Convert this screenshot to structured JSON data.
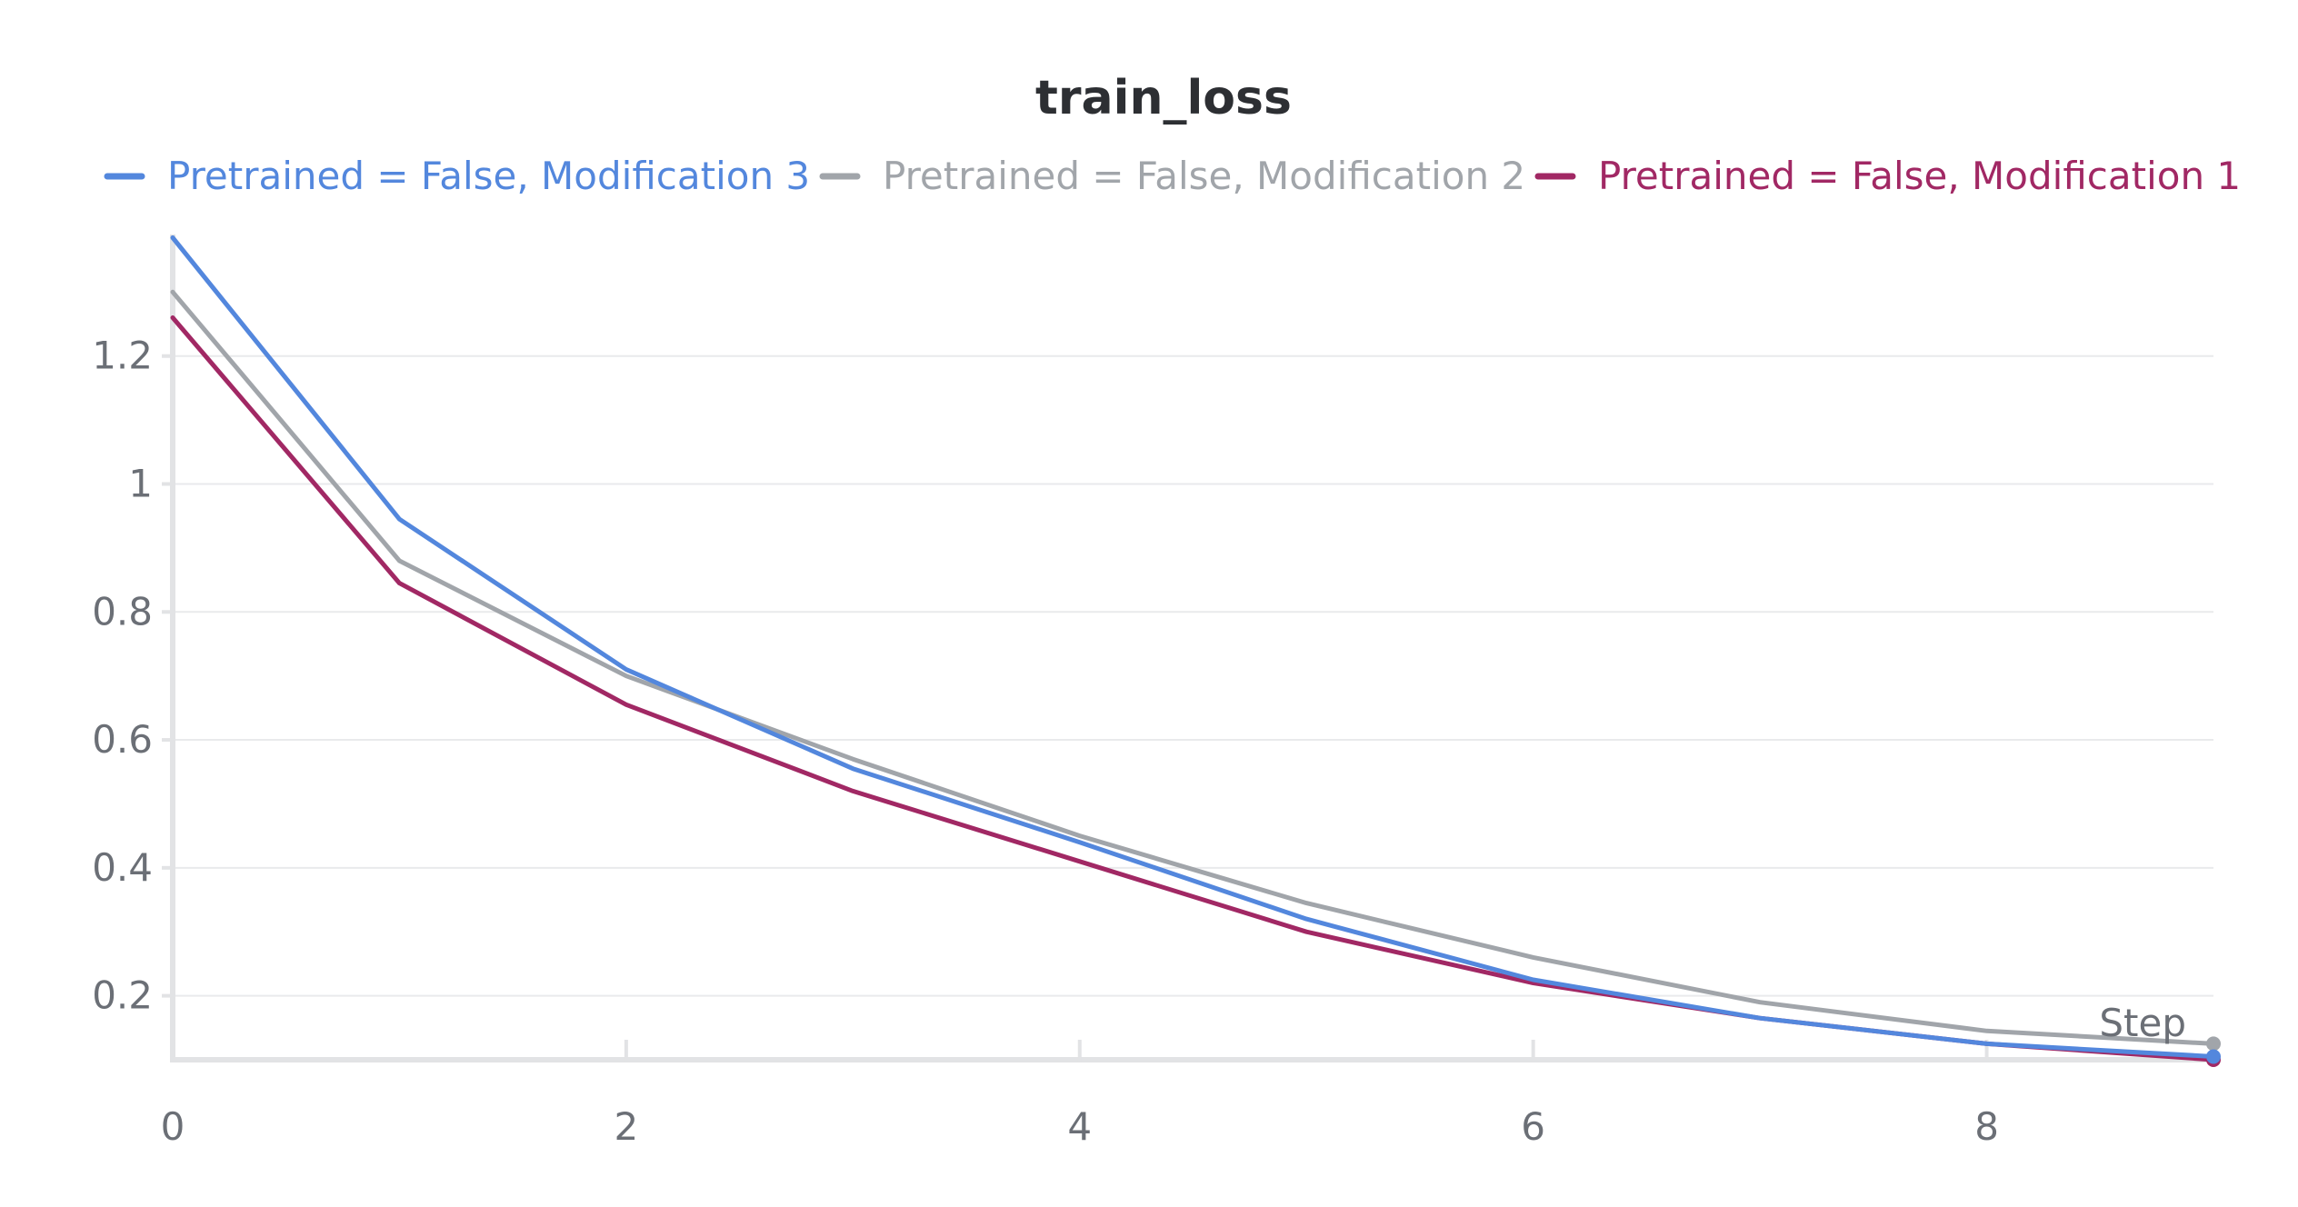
{
  "chart_data": {
    "type": "line",
    "title": "train_loss",
    "xlabel": "Step",
    "ylabel": "",
    "x": [
      0,
      1,
      2,
      3,
      4,
      5,
      6,
      7,
      8,
      9
    ],
    "xlim": [
      0,
      9
    ],
    "ylim": [
      0.1,
      1.39
    ],
    "xticks": [
      0,
      2,
      4,
      6,
      8
    ],
    "yticks": [
      0.2,
      0.4,
      0.6,
      0.8,
      1.0,
      1.2
    ],
    "ytick_labels": [
      "0.2",
      "0.4",
      "0.6",
      "0.8",
      "1",
      "1.2"
    ],
    "grid": true,
    "legend_position": "top",
    "series": [
      {
        "name": "Pretrained = False, Modification 3",
        "color": "#5387dd",
        "values": [
          1.385,
          0.945,
          0.71,
          0.555,
          0.44,
          0.32,
          0.225,
          0.165,
          0.125,
          0.105
        ]
      },
      {
        "name": "Pretrained = False, Modification 2",
        "color": "#a1a5aa",
        "values": [
          1.3,
          0.88,
          0.7,
          0.57,
          0.45,
          0.345,
          0.26,
          0.19,
          0.145,
          0.125
        ]
      },
      {
        "name": "Pretrained = False, Modification 1",
        "color": "#a12864",
        "values": [
          1.26,
          0.845,
          0.655,
          0.52,
          0.41,
          0.3,
          0.22,
          0.165,
          0.125,
          0.1
        ]
      }
    ]
  }
}
